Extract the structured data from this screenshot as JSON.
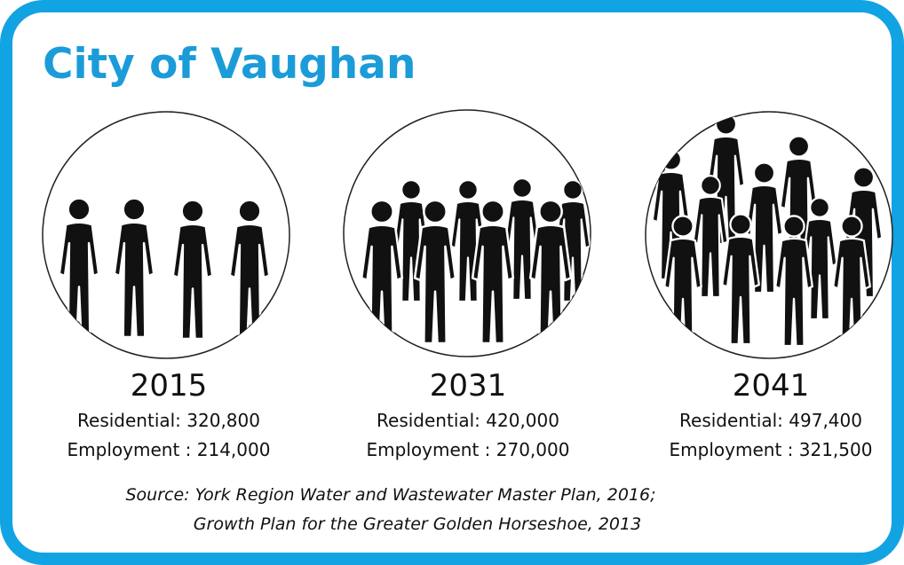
{
  "title": "City of Vaughan",
  "panels": [
    {
      "year": "2015",
      "residential": "Residential: 320,800",
      "employment": "Employment : 214,000"
    },
    {
      "year": "2031",
      "residential": "Residential: 420,000",
      "employment": "Employment : 270,000"
    },
    {
      "year": "2041",
      "residential": "Residential: 497,400",
      "employment": "Employment : 321,500"
    }
  ],
  "source": {
    "line1": "Source: York Region Water and Wastewater Master Plan, 2016;",
    "line2": "Growth Plan for the Greater Golden Horseshoe, 2013"
  }
}
